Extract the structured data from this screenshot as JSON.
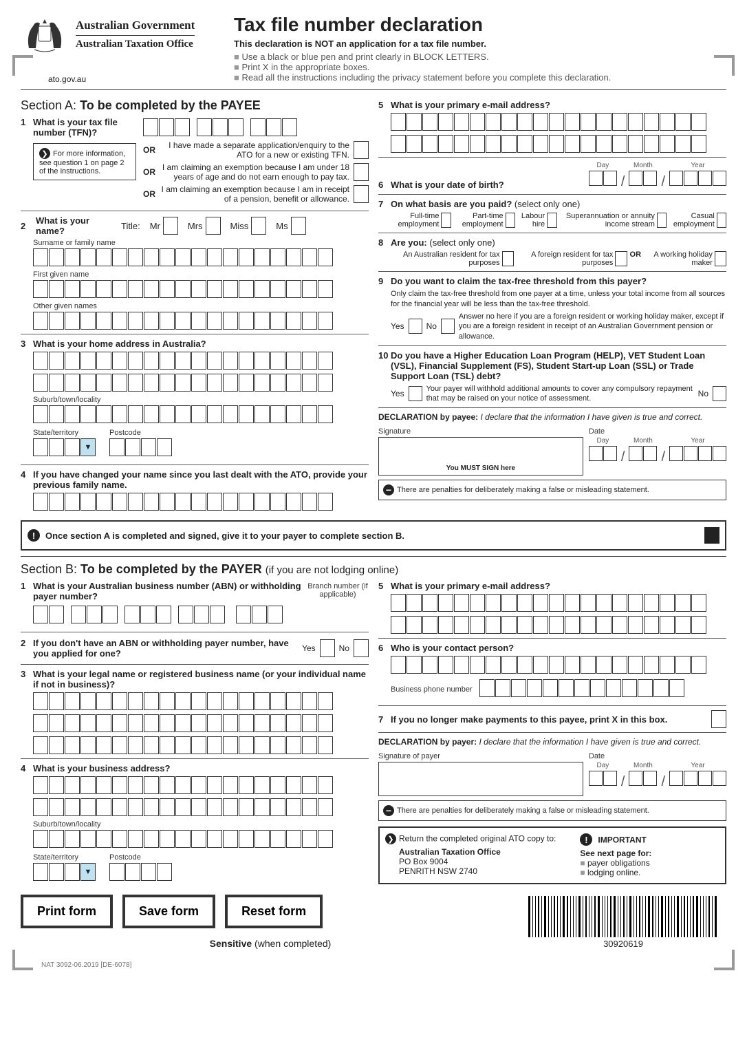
{
  "header": {
    "gov": "Australian Government",
    "office": "Australian Taxation Office",
    "url": "ato.gov.au",
    "title": "Tax file number declaration",
    "subtitle": "This declaration is NOT an application for a tax file number.",
    "bullets": [
      "Use a black or blue pen and print clearly in BLOCK LETTERS.",
      "Print X in the appropriate boxes.",
      "Read all the instructions including the privacy statement before you complete this declaration."
    ]
  },
  "sectionA": {
    "heading_prefix": "Section A: ",
    "heading_bold": "To be completed by the PAYEE",
    "q1": {
      "num": "1",
      "text": "What is your tax file number (TFN)?",
      "info": "For more information, see question 1 on page 2 of the instructions.",
      "or1": "I have made a separate application/enquiry to the ATO for a new or existing TFN.",
      "or2": "I am claiming an exemption because I am under 18 years of age and do not earn enough to pay tax.",
      "or3": "I am claiming an exemption because I am in receipt of a pension, benefit or allowance.",
      "or_label": "OR"
    },
    "q2": {
      "num": "2",
      "text": "What is your name?",
      "title_lbl": "Title:",
      "mr": "Mr",
      "mrs": "Mrs",
      "miss": "Miss",
      "ms": "Ms",
      "surname": "Surname or family name",
      "first": "First given name",
      "other": "Other given names"
    },
    "q3": {
      "num": "3",
      "text": "What is your home address in Australia?",
      "suburb": "Suburb/town/locality",
      "state": "State/territory",
      "postcode": "Postcode"
    },
    "q4": {
      "num": "4",
      "text": "If you have changed your name since you last dealt with the ATO, provide your previous family name."
    },
    "q5": {
      "num": "5",
      "text": "What is your primary e-mail address?"
    },
    "q6": {
      "num": "6",
      "text": "What is your date of birth?",
      "day": "Day",
      "month": "Month",
      "year": "Year"
    },
    "q7": {
      "num": "7",
      "text": "On what basis are you paid?",
      "note": "(select only one)",
      "opts": [
        "Full-time employment",
        "Part-time employment",
        "Labour hire",
        "Superannuation or annuity income stream",
        "Casual employment"
      ]
    },
    "q8": {
      "num": "8",
      "text": "Are you:",
      "note": "(select only one)",
      "opt1": "An Australian resident for tax purposes",
      "opt2": "A foreign resident for tax purposes",
      "or": "OR",
      "opt3": "A working holiday maker"
    },
    "q9": {
      "num": "9",
      "text": "Do you want to claim the tax-free threshold from this payer?",
      "note": "Only claim the tax-free threshold from one payer at a time, unless your total income from all sources for the financial year will be less than the tax-free threshold.",
      "yes": "Yes",
      "no": "No",
      "answer_note": "Answer no here if you are a foreign resident or working holiday maker, except if you are a foreign resident in receipt of an Australian Government pension or allowance."
    },
    "q10": {
      "num": "10",
      "text": "Do you have a Higher Education Loan Program (HELP), VET Student Loan (VSL), Financial Supplement (FS), Student Start-up Loan (SSL) or Trade Support Loan (TSL) debt?",
      "yes": "Yes",
      "no": "No",
      "yes_note": "Your payer will withhold additional amounts to cover any compulsory repayment that may be raised on your notice of assessment."
    },
    "decl": {
      "label": "DECLARATION by payee:",
      "text": "I declare that the information I have given is true and correct.",
      "sig": "Signature",
      "must_sign": "You MUST SIGN here",
      "date": "Date",
      "day": "Day",
      "month": "Month",
      "year": "Year",
      "penalty": "There are penalties for deliberately making a false or misleading statement."
    },
    "notice": "Once section A is completed and signed, give it to your payer to complete section B."
  },
  "sectionB": {
    "heading_prefix": "Section B: ",
    "heading_bold": "To be completed by the PAYER",
    "heading_note": "(if you are not lodging online)",
    "q1": {
      "num": "1",
      "text": "What is your Australian business number (ABN) or withholding payer number?",
      "branch": "Branch number (if applicable)"
    },
    "q2": {
      "num": "2",
      "text": "If you don't have an ABN or withholding payer number, have you applied for one?",
      "yes": "Yes",
      "no": "No"
    },
    "q3": {
      "num": "3",
      "text": "What is your legal name or registered business name (or your individual name if not in business)?"
    },
    "q4": {
      "num": "4",
      "text": "What is your business address?",
      "suburb": "Suburb/town/locality",
      "state": "State/territory",
      "postcode": "Postcode"
    },
    "q5": {
      "num": "5",
      "text": "What is your primary e-mail address?"
    },
    "q6": {
      "num": "6",
      "text": "Who is your contact person?",
      "phone": "Business phone number"
    },
    "q7": {
      "num": "7",
      "text": "If you no longer make payments to this payee, print X in this box."
    },
    "decl": {
      "label": "DECLARATION by payer:",
      "text": "I declare that the information I have given is true and correct.",
      "sig": "Signature of payer",
      "date": "Date",
      "day": "Day",
      "month": "Month",
      "year": "Year",
      "penalty": "There are penalties for deliberately making a false or misleading statement."
    },
    "return": {
      "lead": "Return the completed original ATO copy to:",
      "addr1": "Australian Taxation Office",
      "addr2": "PO Box 9004",
      "addr3": "PENRITH  NSW  2740",
      "important": "IMPORTANT",
      "see": "See next page for:",
      "items": [
        "payer obligations",
        "lodging online."
      ]
    }
  },
  "buttons": {
    "print": "Print form",
    "save": "Save form",
    "reset": "Reset form"
  },
  "footer": {
    "sensitive": "Sensitive",
    "when": "(when completed)",
    "barcode_num": "30920619",
    "doc_id": "NAT 3092-06.2019   [DE-6078]"
  }
}
